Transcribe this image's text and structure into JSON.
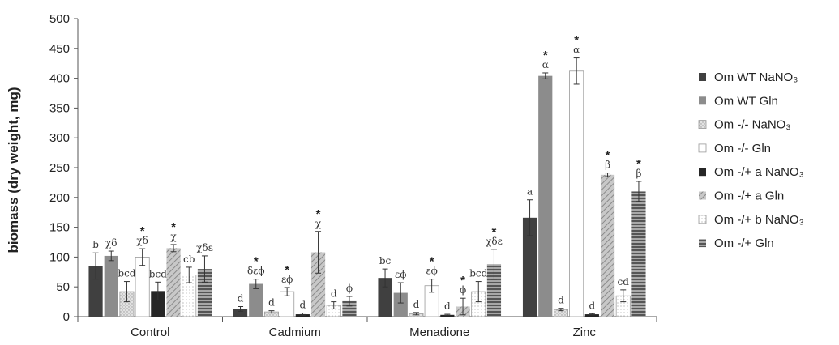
{
  "chart_data": {
    "type": "bar",
    "ylabel": "biomass (dry weight, mg)",
    "ylim": [
      0,
      500
    ],
    "yticks": [
      "0",
      "50",
      "100",
      "150",
      "200",
      "250",
      "300",
      "350",
      "400",
      "450",
      "500"
    ],
    "categories": [
      "Control",
      "Cadmium",
      "Menadione",
      "Zinc"
    ],
    "legend_position": "right",
    "series": [
      {
        "name": "Om WT NaNO₃",
        "color": "#404040",
        "pattern": "solid",
        "values": [
          85,
          13,
          65,
          166
        ],
        "errors": [
          22,
          4,
          15,
          30
        ],
        "labels": [
          "b",
          "d",
          "bc",
          "a"
        ],
        "stars": [
          false,
          false,
          false,
          false
        ]
      },
      {
        "name": "Om WT Gln",
        "color": "#8c8c8c",
        "pattern": "solid",
        "values": [
          102,
          55,
          40,
          404
        ],
        "errors": [
          8,
          8,
          17,
          5
        ],
        "labels": [
          "χδ",
          "δεϕ",
          "εϕ",
          "α"
        ],
        "stars": [
          false,
          true,
          false,
          true
        ]
      },
      {
        "name": "Om -/- NaNO₃",
        "color": "#d4d4d4",
        "pattern": "dots",
        "values": [
          42,
          8,
          5,
          12
        ],
        "errors": [
          17,
          2,
          2,
          2
        ],
        "labels": [
          "bcd",
          "d",
          "d",
          "d"
        ],
        "stars": [
          false,
          false,
          false,
          false
        ]
      },
      {
        "name": "Om -/- Gln",
        "color": "#ffffff",
        "pattern": "solid",
        "values": [
          100,
          42,
          52,
          412
        ],
        "errors": [
          14,
          7,
          11,
          22
        ],
        "labels": [
          "χδ",
          "εϕ",
          "εϕ",
          "α"
        ],
        "stars": [
          true,
          true,
          true,
          true
        ]
      },
      {
        "name": "Om -/+ a NaNO₃",
        "color": "#262626",
        "pattern": "solid",
        "values": [
          43,
          4,
          3,
          4
        ],
        "errors": [
          15,
          2,
          1,
          1
        ],
        "labels": [
          "bcd",
          "d",
          "d",
          "d"
        ],
        "stars": [
          false,
          false,
          false,
          false
        ]
      },
      {
        "name": "Om -/+ a Gln",
        "color": "#b0b0b0",
        "pattern": "diag",
        "values": [
          115,
          108,
          17,
          238
        ],
        "errors": [
          6,
          35,
          14,
          3
        ],
        "labels": [
          "χ",
          "χ",
          "ϕ",
          "β"
        ],
        "stars": [
          true,
          true,
          true,
          true
        ]
      },
      {
        "name": "Om -/+ b NaNO₃",
        "color": "#ffffff",
        "pattern": "dots",
        "values": [
          70,
          19,
          42,
          35
        ],
        "errors": [
          13,
          6,
          17,
          10
        ],
        "labels": [
          "cb",
          "d",
          "bcd",
          "cd"
        ],
        "stars": [
          false,
          false,
          false,
          false
        ]
      },
      {
        "name": "Om -/+ Gln",
        "color": "#7a7a7a",
        "pattern": "hstripes",
        "values": [
          80,
          26,
          88,
          210
        ],
        "errors": [
          22,
          8,
          25,
          17
        ],
        "labels": [
          "χδε",
          "ϕ",
          "χδε",
          "β"
        ],
        "stars": [
          false,
          false,
          true,
          true
        ]
      }
    ]
  }
}
